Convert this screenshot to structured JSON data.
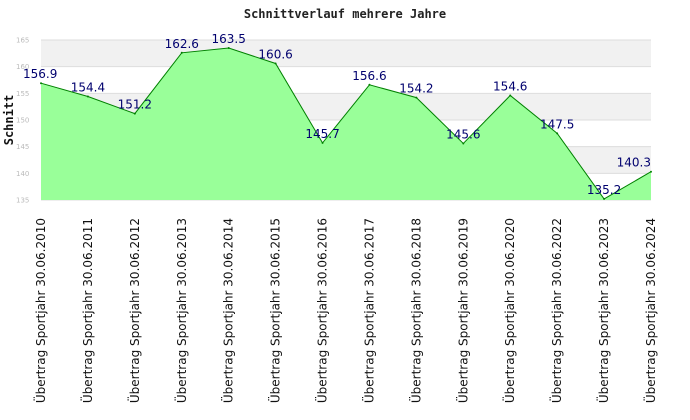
{
  "chart_data": {
    "type": "area",
    "title": "Schnittverlauf mehrere Jahre",
    "xlabel": "",
    "ylabel": "Schnitt",
    "ylim": [
      135,
      165
    ],
    "yticks": [
      135,
      140,
      145,
      150,
      155,
      160,
      165
    ],
    "grid": true,
    "legend": "none",
    "categories": [
      "Übertrag Sportjahr 30.06.2010",
      "Übertrag Sportjahr 30.06.2011",
      "Übertrag Sportjahr 30.06.2012",
      "Übertrag Sportjahr 30.06.2013",
      "Übertrag Sportjahr 30.06.2014",
      "Übertrag Sportjahr 30.06.2015",
      "Übertrag Sportjahr 30.06.2016",
      "Übertrag Sportjahr 30.06.2017",
      "Übertrag Sportjahr 30.06.2018",
      "Übertrag Sportjahr 30.06.2019",
      "Übertrag Sportjahr 30.06.2020",
      "Übertrag Sportjahr 30.06.2022",
      "Übertrag Sportjahr 30.06.2023",
      "Übertrag Sportjahr 30.06.2024"
    ],
    "values": [
      156.9,
      154.4,
      151.2,
      162.6,
      163.5,
      160.6,
      145.7,
      156.6,
      154.2,
      145.6,
      154.6,
      147.5,
      135.2,
      140.3
    ],
    "colors": {
      "fill": "#99ff99",
      "line": "#008000",
      "label": "#00006e",
      "band_light": "#ffffff",
      "band_dark": "#f1f1f1",
      "grid": "#dddddd"
    }
  }
}
